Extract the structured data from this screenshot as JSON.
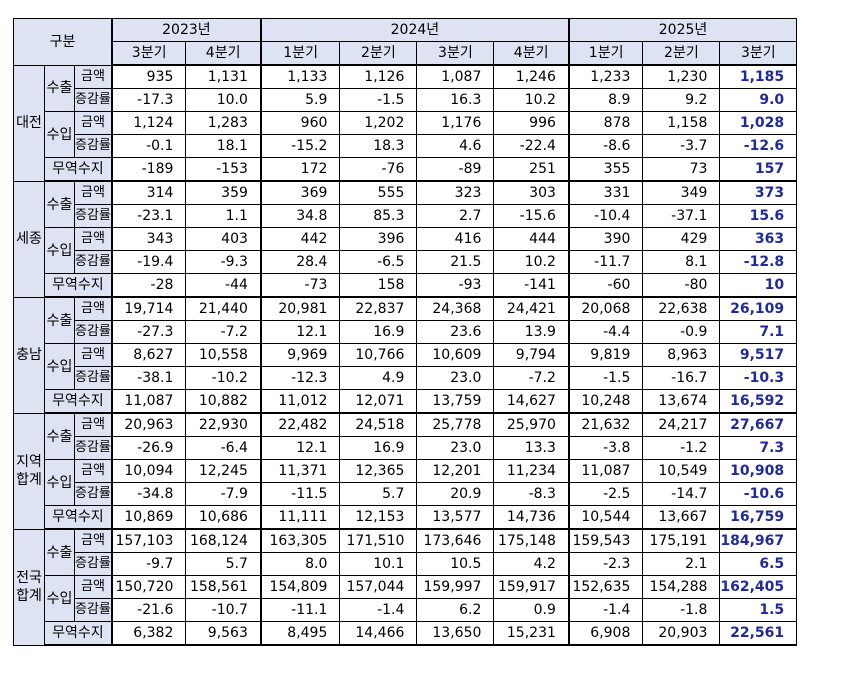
{
  "header": {
    "corner": "구분",
    "years": [
      "2023년",
      "2024년",
      "2025년"
    ],
    "quarters": [
      "3분기",
      "4분기",
      "1분기",
      "2분기",
      "3분기",
      "4분기",
      "1분기",
      "2분기",
      "3분기"
    ]
  },
  "labels": {
    "export": "수출",
    "import": "수입",
    "amount": "금액",
    "growth": "증감률",
    "balance": "무역수지"
  },
  "regions": [
    {
      "name": "대전",
      "export_amount": [
        "935",
        "1,131",
        "1,133",
        "1,126",
        "1,087",
        "1,246",
        "1,233",
        "1,230",
        "1,185"
      ],
      "export_growth": [
        "-17.3",
        "10.0",
        "5.9",
        "-1.5",
        "16.3",
        "10.2",
        "8.9",
        "9.2",
        "9.0"
      ],
      "import_amount": [
        "1,124",
        "1,283",
        "960",
        "1,202",
        "1,176",
        "996",
        "878",
        "1,158",
        "1,028"
      ],
      "import_growth": [
        "-0.1",
        "18.1",
        "-15.2",
        "18.3",
        "4.6",
        "-22.4",
        "-8.6",
        "-3.7",
        "-12.6"
      ],
      "balance": [
        "-189",
        "-153",
        "172",
        "-76",
        "-89",
        "251",
        "355",
        "73",
        "157"
      ]
    },
    {
      "name": "세종",
      "export_amount": [
        "314",
        "359",
        "369",
        "555",
        "323",
        "303",
        "331",
        "349",
        "373"
      ],
      "export_growth": [
        "-23.1",
        "1.1",
        "34.8",
        "85.3",
        "2.7",
        "-15.6",
        "-10.4",
        "-37.1",
        "15.6"
      ],
      "import_amount": [
        "343",
        "403",
        "442",
        "396",
        "416",
        "444",
        "390",
        "429",
        "363"
      ],
      "import_growth": [
        "-19.4",
        "-9.3",
        "28.4",
        "-6.5",
        "21.5",
        "10.2",
        "-11.7",
        "8.1",
        "-12.8"
      ],
      "balance": [
        "-28",
        "-44",
        "-73",
        "158",
        "-93",
        "-141",
        "-60",
        "-80",
        "10"
      ]
    },
    {
      "name": "충남",
      "export_amount": [
        "19,714",
        "21,440",
        "20,981",
        "22,837",
        "24,368",
        "24,421",
        "20,068",
        "22,638",
        "26,109"
      ],
      "export_growth": [
        "-27.3",
        "-7.2",
        "12.1",
        "16.9",
        "23.6",
        "13.9",
        "-4.4",
        "-0.9",
        "7.1"
      ],
      "import_amount": [
        "8,627",
        "10,558",
        "9,969",
        "10,766",
        "10,609",
        "9,794",
        "9,819",
        "8,963",
        "9,517"
      ],
      "import_growth": [
        "-38.1",
        "-10.2",
        "-12.3",
        "4.9",
        "23.0",
        "-7.2",
        "-1.5",
        "-16.7",
        "-10.3"
      ],
      "balance": [
        "11,087",
        "10,882",
        "11,012",
        "12,071",
        "13,759",
        "14,627",
        "10,248",
        "13,674",
        "16,592"
      ]
    },
    {
      "name": "지역 합계",
      "name_lines": [
        "지역",
        "합계"
      ],
      "export_amount": [
        "20,963",
        "22,930",
        "22,482",
        "24,518",
        "25,778",
        "25,970",
        "21,632",
        "24,217",
        "27,667"
      ],
      "export_growth": [
        "-26.9",
        "-6.4",
        "12.1",
        "16.9",
        "23.0",
        "13.3",
        "-3.8",
        "-1.2",
        "7.3"
      ],
      "import_amount": [
        "10,094",
        "12,245",
        "11,371",
        "12,365",
        "12,201",
        "11,234",
        "11,087",
        "10,549",
        "10,908"
      ],
      "import_growth": [
        "-34.8",
        "-7.9",
        "-11.5",
        "5.7",
        "20.9",
        "-8.3",
        "-2.5",
        "-14.7",
        "-10.6"
      ],
      "balance": [
        "10,869",
        "10,686",
        "11,111",
        "12,153",
        "13,577",
        "14,736",
        "10,544",
        "13,667",
        "16,759"
      ]
    },
    {
      "name": "전국 합계",
      "name_lines": [
        "전국",
        "합계"
      ],
      "export_amount": [
        "157,103",
        "168,124",
        "163,305",
        "171,510",
        "173,646",
        "175,148",
        "159,543",
        "175,191",
        "184,967"
      ],
      "export_growth": [
        "-9.7",
        "5.7",
        "8.0",
        "10.1",
        "10.5",
        "4.2",
        "-2.3",
        "2.1",
        "6.5"
      ],
      "import_amount": [
        "150,720",
        "158,561",
        "154,809",
        "157,044",
        "159,997",
        "159,917",
        "152,635",
        "154,288",
        "162,405"
      ],
      "import_growth": [
        "-21.6",
        "-10.7",
        "-11.1",
        "-1.4",
        "6.2",
        "0.9",
        "-1.4",
        "-1.8",
        "1.5"
      ],
      "balance": [
        "6,382",
        "9,563",
        "8,495",
        "14,466",
        "13,650",
        "15,231",
        "6,908",
        "20,903",
        "22,561"
      ]
    }
  ],
  "colors": {
    "header_bg": "#dde3f2",
    "highlight_text": "#1f2a9c",
    "border": "#000000"
  }
}
